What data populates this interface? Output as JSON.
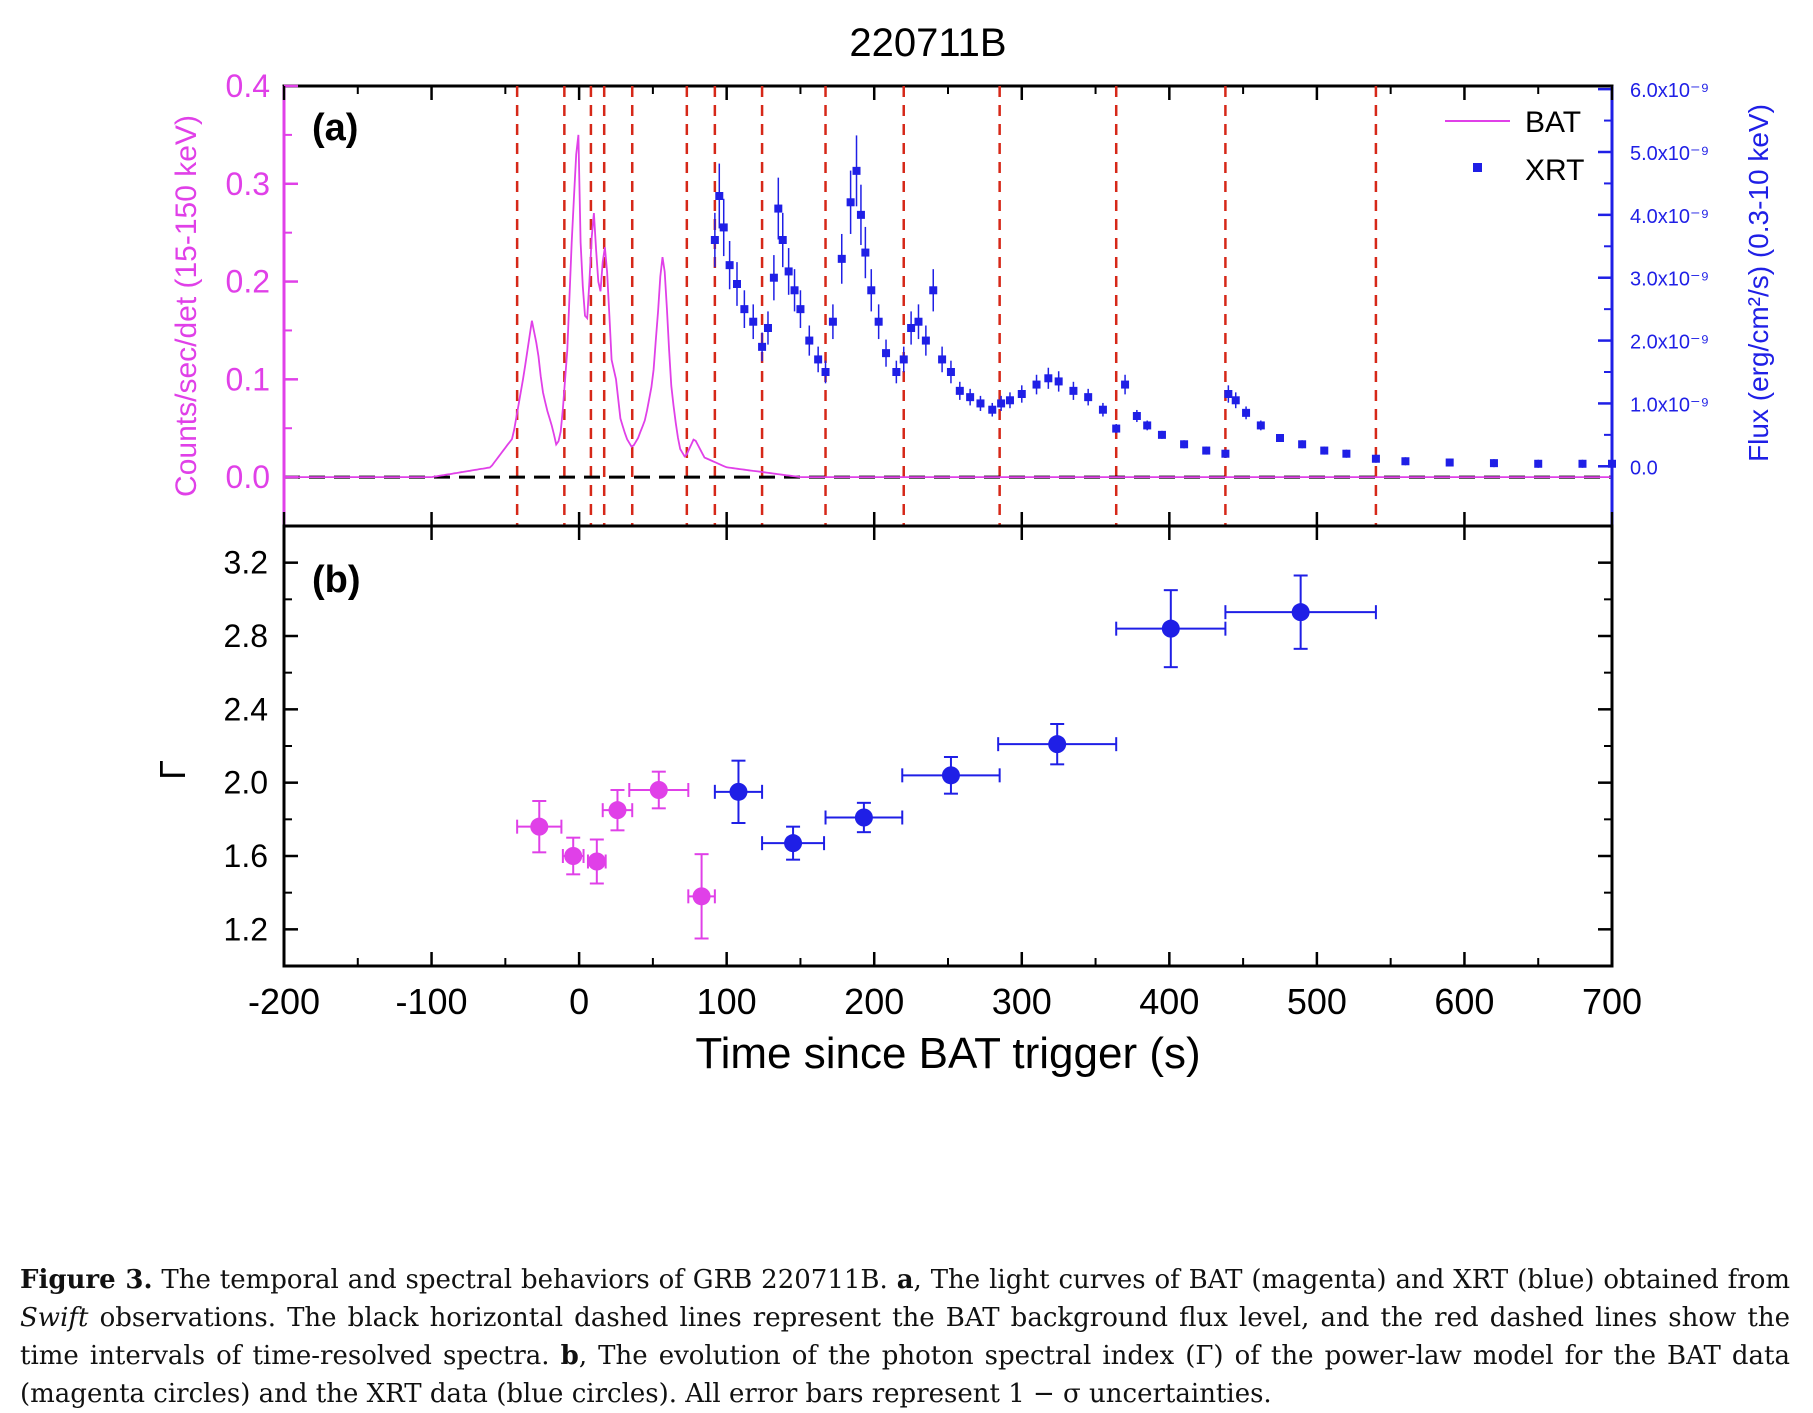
{
  "figure": {
    "title": "220711B",
    "xlabel": "Time since BAT trigger (s)",
    "x_ticks": [
      "-200",
      "-100",
      "0",
      "100",
      "200",
      "300",
      "400",
      "500",
      "600",
      "700"
    ]
  },
  "colors": {
    "bat": "#e040e8",
    "xrt": "#1f1fe6",
    "interval_line": "#d62818",
    "background_line": "#000000"
  },
  "caption": {
    "lead": "Figure 3.",
    "text1": " The temporal and spectral behaviors of GRB 220711B. ",
    "a_label": "a",
    "text2": ", The light curves of BAT (magenta) and XRT (blue) obtained from ",
    "swift": "Swift",
    "text3": " observations.  The black horizontal dashed lines represent the BAT background flux level, and the red dashed lines show the time intervals of time-resolved spectra. ",
    "b_label": "b",
    "text4": ", The evolution of the photon spectral index (Γ) of the power-law model for the BAT data (magenta circles) and the XRT data (blue circles). All error bars represent 1 − σ uncertainties."
  },
  "chart_data": [
    {
      "panel": "(a)",
      "type": "line",
      "xlim": [
        -200,
        700
      ],
      "y_left": {
        "label": "Counts/sec/det (15-150 keV)",
        "lim": [
          -0.05,
          0.4
        ],
        "ticks": [
          "0.0",
          "0.1",
          "0.2",
          "0.3",
          "0.4"
        ]
      },
      "y_right": {
        "label": "Flux (erg/cm²/s) (0.3-10 keV)",
        "lim": [
          -9.5e-10,
          6.05e-09
        ],
        "ticks": [
          "0.0",
          "1.0x10⁻⁹",
          "2.0x10⁻⁹",
          "3.0x10⁻⁹",
          "4.0x10⁻⁹",
          "5.0x10⁻⁹",
          "6.0x10⁻⁹"
        ]
      },
      "legend": {
        "position": "top-right",
        "entries": [
          "BAT",
          "XRT"
        ]
      },
      "background_level": 0.0,
      "interval_boundaries": [
        -42,
        -10,
        8,
        17,
        36,
        73,
        92,
        124,
        167,
        220,
        285,
        364,
        438,
        540
      ],
      "series": [
        {
          "name": "BAT",
          "axis": "left",
          "x": [
            -200,
            -150,
            -100,
            -60,
            -45,
            -38,
            -32,
            -28,
            -25,
            -22,
            -18,
            -15,
            -12,
            -8,
            -5,
            -3,
            -1,
            0,
            1,
            3,
            5,
            7,
            9,
            10,
            12,
            14,
            16,
            18,
            20,
            22,
            25,
            28,
            32,
            36,
            40,
            45,
            50,
            52,
            54,
            56,
            58,
            60,
            62,
            65,
            68,
            72,
            78,
            85,
            100,
            150,
            200,
            300,
            400,
            500,
            600,
            700
          ],
          "y": [
            0.0,
            0.0,
            0.0,
            0.01,
            0.04,
            0.1,
            0.16,
            0.13,
            0.09,
            0.07,
            0.05,
            0.03,
            0.05,
            0.13,
            0.24,
            0.3,
            0.36,
            0.34,
            0.24,
            0.18,
            0.15,
            0.2,
            0.26,
            0.27,
            0.22,
            0.18,
            0.22,
            0.24,
            0.18,
            0.12,
            0.1,
            0.06,
            0.04,
            0.03,
            0.04,
            0.06,
            0.1,
            0.14,
            0.18,
            0.23,
            0.21,
            0.16,
            0.1,
            0.06,
            0.03,
            0.02,
            0.04,
            0.02,
            0.01,
            0.0,
            0.0,
            0.0,
            0.0,
            0.0,
            0.0,
            0.0
          ]
        },
        {
          "name": "XRT",
          "axis": "right",
          "x": [
            92,
            95,
            98,
            102,
            107,
            112,
            118,
            124,
            128,
            132,
            135,
            138,
            142,
            146,
            150,
            156,
            162,
            167,
            172,
            178,
            184,
            188,
            191,
            194,
            198,
            203,
            208,
            215,
            220,
            225,
            230,
            235,
            240,
            246,
            252,
            258,
            265,
            272,
            280,
            286,
            292,
            300,
            310,
            318,
            325,
            335,
            345,
            355,
            364,
            370,
            378,
            385,
            395,
            410,
            425,
            438,
            440,
            445,
            452,
            462,
            475,
            490,
            505,
            520,
            540,
            560,
            590,
            620,
            650,
            680,
            700
          ],
          "y": [
            3.6e-09,
            4.3e-09,
            3.8e-09,
            3.2e-09,
            2.9e-09,
            2.5e-09,
            2.3e-09,
            1.9e-09,
            2.2e-09,
            3e-09,
            4.1e-09,
            3.6e-09,
            3.1e-09,
            2.8e-09,
            2.5e-09,
            2e-09,
            1.7e-09,
            1.5e-09,
            2.3e-09,
            3.3e-09,
            4.2e-09,
            4.7e-09,
            4e-09,
            3.4e-09,
            2.8e-09,
            2.3e-09,
            1.8e-09,
            1.5e-09,
            1.7e-09,
            2.2e-09,
            2.3e-09,
            2e-09,
            2.8e-09,
            1.7e-09,
            1.5e-09,
            1.2e-09,
            1.1e-09,
            1e-09,
            9e-10,
            1e-09,
            1.05e-09,
            1.15e-09,
            1.3e-09,
            1.4e-09,
            1.35e-09,
            1.2e-09,
            1.1e-09,
            9e-10,
            6e-10,
            1.3e-09,
            8e-10,
            6.5e-10,
            5e-10,
            3.5e-10,
            2.5e-10,
            2e-10,
            1.15e-09,
            1.05e-09,
            8.5e-10,
            6.5e-10,
            4.5e-10,
            3.5e-10,
            2.5e-10,
            2e-10,
            1.2e-10,
            8e-11,
            6e-11,
            5e-11,
            4e-11,
            4e-11,
            4e-11
          ]
        }
      ]
    },
    {
      "panel": "(b)",
      "type": "scatter",
      "xlim": [
        -200,
        700
      ],
      "ylabel": "Γ",
      "ylim": [
        1.0,
        3.4
      ],
      "y_ticks": [
        "1.2",
        "1.6",
        "2.0",
        "2.4",
        "2.8",
        "3.2"
      ],
      "series": [
        {
          "name": "BAT",
          "points": [
            {
              "x": -27,
              "xerr": 15,
              "y": 1.76,
              "yerr": 0.14
            },
            {
              "x": -4,
              "xerr": 7,
              "y": 1.6,
              "yerr": 0.1
            },
            {
              "x": 12,
              "xerr": 6,
              "y": 1.57,
              "yerr": 0.12
            },
            {
              "x": 26,
              "xerr": 10,
              "y": 1.85,
              "yerr": 0.11
            },
            {
              "x": 54,
              "xerr": 20,
              "y": 1.96,
              "yerr": 0.1
            },
            {
              "x": 83,
              "xerr": 9,
              "y": 1.38,
              "yerr": 0.23
            }
          ]
        },
        {
          "name": "XRT",
          "points": [
            {
              "x": 108,
              "xerr": 16,
              "y": 1.95,
              "yerr": 0.17
            },
            {
              "x": 145,
              "xerr": 21,
              "y": 1.67,
              "yerr": 0.09
            },
            {
              "x": 193,
              "xerr": 26,
              "y": 1.81,
              "yerr": 0.08
            },
            {
              "x": 252,
              "xerr": 33,
              "y": 2.04,
              "yerr": 0.1
            },
            {
              "x": 324,
              "xerr": 40,
              "y": 2.21,
              "yerr": 0.11
            },
            {
              "x": 401,
              "xerr": 37,
              "y": 2.84,
              "yerr": 0.21
            },
            {
              "x": 489,
              "xerr": 51,
              "y": 2.93,
              "yerr": 0.2
            }
          ]
        }
      ]
    }
  ]
}
